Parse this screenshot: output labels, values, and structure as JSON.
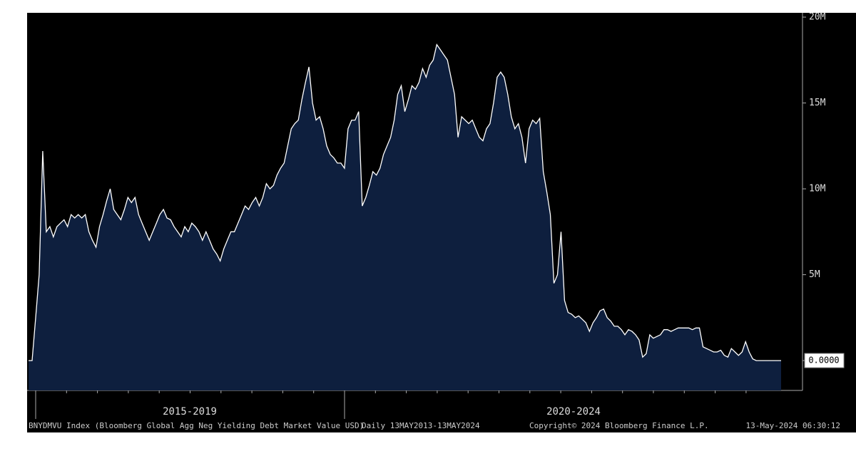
{
  "chart_data": {
    "type": "area",
    "color": "#0e1f3e",
    "line_color": "#ffffff",
    "values": [
      0,
      0,
      2.5,
      5,
      12.2,
      7.5,
      7.8,
      7.2,
      7.8,
      8,
      8.2,
      7.8,
      8.5,
      8.3,
      8.5,
      8.3,
      8.5,
      7.5,
      7,
      6.6,
      7.8,
      8.5,
      9.3,
      10,
      8.8,
      8.5,
      8.2,
      8.8,
      9.5,
      9.2,
      9.5,
      8.5,
      8,
      7.5,
      7,
      7.5,
      8,
      8.5,
      8.8,
      8.3,
      8.2,
      7.8,
      7.5,
      7.2,
      7.8,
      7.5,
      8,
      7.8,
      7.5,
      7,
      7.5,
      7,
      6.5,
      6.2,
      5.8,
      6.5,
      7,
      7.5,
      7.5,
      8,
      8.5,
      9,
      8.8,
      9.2,
      9.5,
      9,
      9.5,
      10.3,
      10,
      10.2,
      10.8,
      11.2,
      11.5,
      12.5,
      13.5,
      13.8,
      14,
      15.2,
      16.2,
      17.1,
      15,
      14,
      14.2,
      13.5,
      12.5,
      12,
      11.8,
      11.5,
      11.5,
      11.2,
      13.5,
      14,
      14,
      14.5,
      9,
      9.5,
      10.2,
      11,
      10.8,
      11.2,
      12,
      12.5,
      13,
      14,
      15.5,
      16,
      14.5,
      15.2,
      16,
      15.8,
      16.2,
      17,
      16.5,
      17.2,
      17.5,
      18.4,
      18.1,
      17.8,
      17.5,
      16.5,
      15.5,
      13,
      14.2,
      14,
      13.8,
      14,
      13.5,
      13,
      12.8,
      13.5,
      13.8,
      15,
      16.5,
      16.8,
      16.5,
      15.5,
      14.2,
      13.5,
      13.8,
      13,
      11.5,
      13.5,
      14,
      13.8,
      14.1,
      11,
      9.8,
      8.5,
      4.5,
      5,
      7.5,
      3.5,
      2.8,
      2.7,
      2.5,
      2.6,
      2.4,
      2.2,
      1.7,
      2.2,
      2.5,
      2.9,
      3,
      2.5,
      2.3,
      2,
      2,
      1.8,
      1.5,
      1.8,
      1.7,
      1.5,
      1.2,
      0.2,
      0.4,
      1.5,
      1.3,
      1.4,
      1.5,
      1.8,
      1.8,
      1.7,
      1.8,
      1.9,
      1.9,
      1.9,
      1.9,
      1.8,
      1.9,
      1.9,
      0.8,
      0.7,
      0.6,
      0.5,
      0.5,
      0.6,
      0.3,
      0.2,
      0.7,
      0.5,
      0.3,
      0.5,
      1.1,
      0.5,
      0.1,
      0,
      0,
      0,
      0,
      0,
      0,
      0,
      0
    ],
    "ylim": [
      -1.74,
      20.25
    ],
    "yticks": [
      {
        "value": 0,
        "label": "0.0000"
      },
      {
        "value": 5,
        "label": "5M"
      },
      {
        "value": 10,
        "label": "10M"
      },
      {
        "value": 15,
        "label": "15M"
      },
      {
        "value": 20,
        "label": "20M"
      }
    ],
    "x_labels": [
      "2015-2019",
      "2020-2024"
    ],
    "footer": [
      "BNYDMVU Index (Bloomberg Global Agg Neg Yielding Debt Market Value USD)",
      "Daily 13MAY2013-13MAY2024",
      "Copyright© 2024 Bloomberg Finance L.P.",
      "13-May-2024 06:30:12"
    ]
  }
}
